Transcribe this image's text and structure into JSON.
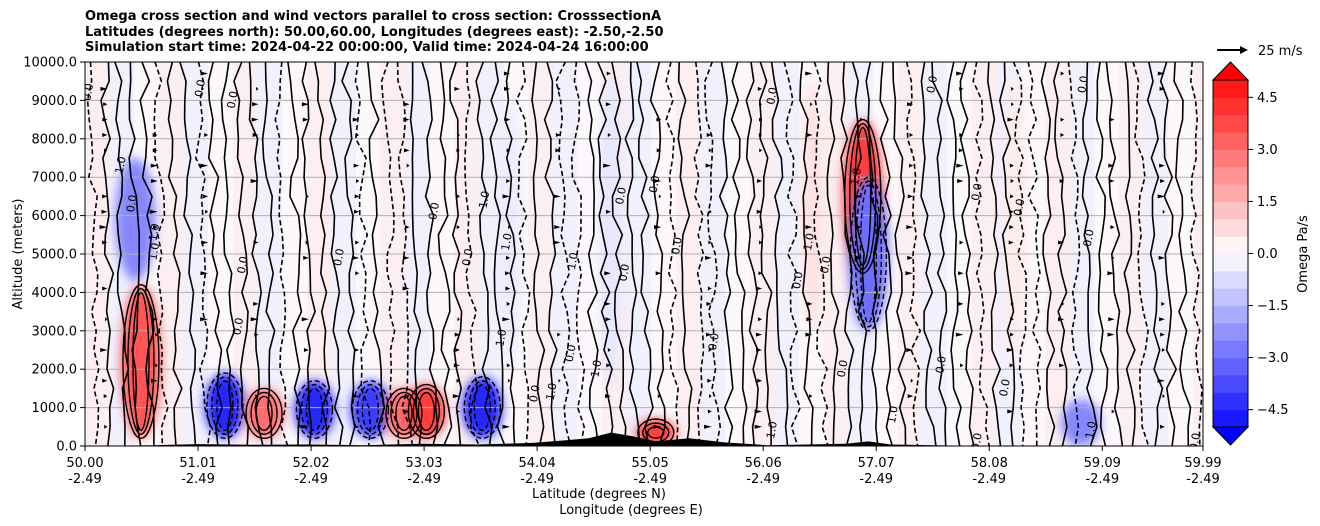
{
  "chart_data": {
    "type": "heatmap",
    "title_lines": [
      "Omega cross section and wind vectors parallel to cross section: CrosssectionA",
      "Latitudes (degrees north): 50.00,60.00, Longitudes (degrees east): -2.50,-2.50",
      "Simulation start time: 2024-04-22 00:00:00, Valid time: 2024-04-24 16:00:00"
    ],
    "xlabel_lines": [
      "Latitude (degrees N)",
      "Longitude (degrees E)"
    ],
    "ylabel": "Altitude (meters)",
    "ylim": [
      0,
      10000
    ],
    "xlim": [
      50.0,
      59.99
    ],
    "grid": "horizontal",
    "x_ticks": [
      {
        "lat": "50.00",
        "lon": "-2.49",
        "v": 50.0
      },
      {
        "lat": "51.01",
        "lon": "-2.49",
        "v": 51.01
      },
      {
        "lat": "52.02",
        "lon": "-2.49",
        "v": 52.02
      },
      {
        "lat": "53.03",
        "lon": "-2.49",
        "v": 53.03
      },
      {
        "lat": "54.04",
        "lon": "-2.49",
        "v": 54.04
      },
      {
        "lat": "55.05",
        "lon": "-2.49",
        "v": 55.05
      },
      {
        "lat": "56.06",
        "lon": "-2.49",
        "v": 56.06
      },
      {
        "lat": "57.07",
        "lon": "-2.49",
        "v": 57.07
      },
      {
        "lat": "58.08",
        "lon": "-2.49",
        "v": 58.08
      },
      {
        "lat": "59.09",
        "lon": "-2.49",
        "v": 59.09
      },
      {
        "lat": "59.99",
        "lon": "-2.49",
        "v": 59.99
      }
    ],
    "y_ticks": [
      {
        "label": "0.0",
        "v": 0
      },
      {
        "label": "1000.0",
        "v": 1000
      },
      {
        "label": "2000.0",
        "v": 2000
      },
      {
        "label": "3000.0",
        "v": 3000
      },
      {
        "label": "4000.0",
        "v": 4000
      },
      {
        "label": "5000.0",
        "v": 5000
      },
      {
        "label": "6000.0",
        "v": 6000
      },
      {
        "label": "7000.0",
        "v": 7000
      },
      {
        "label": "8000.0",
        "v": 8000
      },
      {
        "label": "9000.0",
        "v": 9000
      },
      {
        "label": "10000.0",
        "v": 10000
      }
    ],
    "colorbar": {
      "label": "Omega Pa/s",
      "range": [
        -5,
        5
      ],
      "ticks": [
        {
          "label": "4.5",
          "v": 4.5
        },
        {
          "label": "3.0",
          "v": 3.0
        },
        {
          "label": "1.5",
          "v": 1.5
        },
        {
          "label": "0.0",
          "v": 0.0
        },
        {
          "label": "−1.5",
          "v": -1.5
        },
        {
          "label": "−3.0",
          "v": -3.0
        },
        {
          "label": "−4.5",
          "v": -4.5
        }
      ],
      "positive_color": "#ff0000",
      "negative_color": "#0000ff",
      "extend": "both"
    },
    "wind_reference": {
      "label": "25 m/s"
    },
    "omega_cells": [
      {
        "lat": 50.5,
        "alt_lo": 200,
        "alt_hi": 4200,
        "omega": 3.5
      },
      {
        "lat": 50.45,
        "alt_lo": 4300,
        "alt_hi": 7500,
        "omega": -2.5
      },
      {
        "lat": 51.25,
        "alt_lo": 200,
        "alt_hi": 1900,
        "omega": -4.5
      },
      {
        "lat": 51.6,
        "alt_lo": 200,
        "alt_hi": 1500,
        "omega": 3.0
      },
      {
        "lat": 52.05,
        "alt_lo": 200,
        "alt_hi": 1700,
        "omega": -4.5
      },
      {
        "lat": 52.55,
        "alt_lo": 200,
        "alt_hi": 1700,
        "omega": -4.0
      },
      {
        "lat": 52.85,
        "alt_lo": 200,
        "alt_hi": 1500,
        "omega": 3.0
      },
      {
        "lat": 53.05,
        "alt_lo": 200,
        "alt_hi": 1600,
        "omega": 4.0
      },
      {
        "lat": 53.55,
        "alt_lo": 200,
        "alt_hi": 1800,
        "omega": -4.5
      },
      {
        "lat": 55.1,
        "alt_lo": 0,
        "alt_hi": 700,
        "omega": 4.0
      },
      {
        "lat": 56.95,
        "alt_lo": 4500,
        "alt_hi": 8500,
        "omega": 4.0
      },
      {
        "lat": 57.0,
        "alt_lo": 3000,
        "alt_hi": 7000,
        "omega": -3.0
      },
      {
        "lat": 58.9,
        "alt_lo": 0,
        "alt_hi": 1200,
        "omega": -2.5
      },
      {
        "lat": 56.5,
        "alt_lo": 3000,
        "alt_hi": 9500,
        "omega": 0.6
      },
      {
        "lat": 58.3,
        "alt_lo": 2000,
        "alt_hi": 9800,
        "omega": 0.4
      },
      {
        "lat": 54.7,
        "alt_lo": 1500,
        "alt_hi": 9800,
        "omega": -0.5
      },
      {
        "lat": 53.8,
        "alt_lo": 2000,
        "alt_hi": 9000,
        "omega": -0.4
      }
    ],
    "contour_labels": [
      {
        "text": "0.0",
        "lat": 50.06,
        "alt": 9200
      },
      {
        "text": "1.0",
        "lat": 50.35,
        "alt": 7300
      },
      {
        "text": "0.0",
        "lat": 50.45,
        "alt": 6300
      },
      {
        "text": "1.0",
        "lat": 50.65,
        "alt": 5550
      },
      {
        "text": "1.0",
        "lat": 50.65,
        "alt": 5050
      },
      {
        "text": "0.0",
        "lat": 51.06,
        "alt": 9300
      },
      {
        "text": "0.0",
        "lat": 51.35,
        "alt": 9000
      },
      {
        "text": "0.0",
        "lat": 51.4,
        "alt": 3100
      },
      {
        "text": "0.0",
        "lat": 51.44,
        "alt": 4700
      },
      {
        "text": "0.0",
        "lat": 52.3,
        "alt": 4900
      },
      {
        "text": "0.0",
        "lat": 53.15,
        "alt": 6100
      },
      {
        "text": "0.0",
        "lat": 53.45,
        "alt": 4900
      },
      {
        "text": "1.0",
        "lat": 53.75,
        "alt": 2800
      },
      {
        "text": "1.0",
        "lat": 53.6,
        "alt": 6400
      },
      {
        "text": "1.0",
        "lat": 53.8,
        "alt": 5300
      },
      {
        "text": "0.0",
        "lat": 54.05,
        "alt": 1350
      },
      {
        "text": "1.0",
        "lat": 54.2,
        "alt": 1400
      },
      {
        "text": "1.0",
        "lat": 54.39,
        "alt": 4800
      },
      {
        "text": "0.0",
        "lat": 54.37,
        "alt": 2400
      },
      {
        "text": "1.0",
        "lat": 54.6,
        "alt": 2000
      },
      {
        "text": "0.0",
        "lat": 54.85,
        "alt": 4500
      },
      {
        "text": "0.0",
        "lat": 54.82,
        "alt": 6500
      },
      {
        "text": "0.0",
        "lat": 55.12,
        "alt": 6800
      },
      {
        "text": "0.0",
        "lat": 55.32,
        "alt": 5200
      },
      {
        "text": "0.0",
        "lat": 55.65,
        "alt": 2700
      },
      {
        "text": "0.0",
        "lat": 56.17,
        "alt": 9100
      },
      {
        "text": "1.0",
        "lat": 56.17,
        "alt": 400
      },
      {
        "text": "0.0",
        "lat": 56.4,
        "alt": 4300
      },
      {
        "text": "1.0",
        "lat": 56.5,
        "alt": 5300
      },
      {
        "text": "0.0",
        "lat": 56.65,
        "alt": 4700
      },
      {
        "text": "0.0",
        "lat": 56.8,
        "alt": 2000
      },
      {
        "text": "1.0",
        "lat": 56.92,
        "alt": 7000
      },
      {
        "text": "1.0",
        "lat": 57.25,
        "alt": 800
      },
      {
        "text": "0.0",
        "lat": 57.6,
        "alt": 9400
      },
      {
        "text": "0.0",
        "lat": 57.68,
        "alt": 2100
      },
      {
        "text": "0.0",
        "lat": 58.0,
        "alt": 6600
      },
      {
        "text": "0.0",
        "lat": 58.0,
        "alt": 100
      },
      {
        "text": "0.0",
        "lat": 58.25,
        "alt": 1500
      },
      {
        "text": "0.0",
        "lat": 58.38,
        "alt": 6200
      },
      {
        "text": "0.0",
        "lat": 58.95,
        "alt": 9400
      },
      {
        "text": "0.0",
        "lat": 59.0,
        "alt": 5400
      },
      {
        "text": "1.0",
        "lat": 59.02,
        "alt": 400
      },
      {
        "text": "0.0",
        "lat": 59.95,
        "alt": 100
      }
    ]
  }
}
